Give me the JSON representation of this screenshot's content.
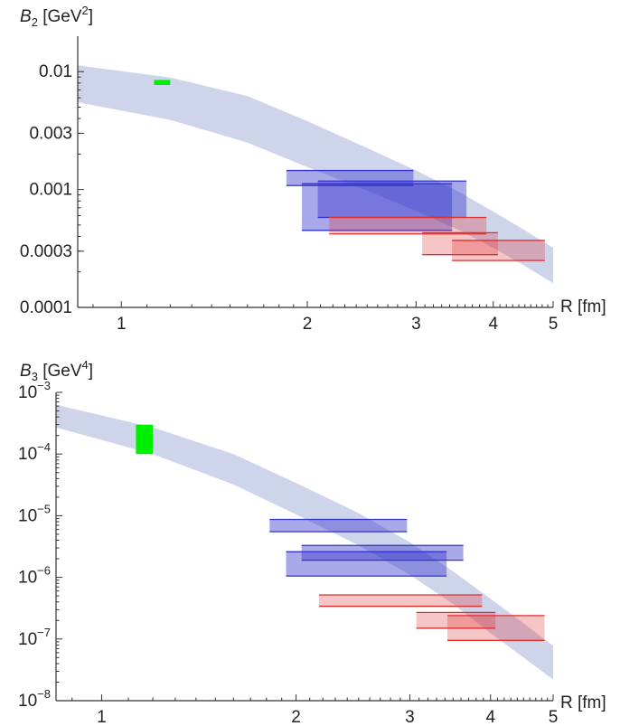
{
  "chart_data": [
    {
      "type": "area",
      "ylabel_symbol": "B",
      "ylabel_subscript": "2",
      "ylabel_unit_pre": " [GeV",
      "ylabel_unit_sup": "2",
      "ylabel_unit_post": "]",
      "xlabel": "R [fm]",
      "xscale": "log",
      "yscale": "log",
      "xlim": [
        0.85,
        5.0
      ],
      "ylim": [
        0.0001,
        0.02
      ],
      "xticks": [
        {
          "value": 1,
          "label": "1"
        },
        {
          "value": 2,
          "label": "2"
        },
        {
          "value": 3,
          "label": "3"
        },
        {
          "value": 4,
          "label": "4"
        },
        {
          "value": 5,
          "label": "5"
        }
      ],
      "yticks": [
        {
          "value": 0.01,
          "label": "0.01"
        },
        {
          "value": 0.003,
          "label": "0.003"
        },
        {
          "value": 0.001,
          "label": "0.001"
        },
        {
          "value": 0.0003,
          "label": "0.0003"
        },
        {
          "value": 0.0001,
          "label": "0.0001"
        }
      ],
      "band": {
        "color": "#c5cde6",
        "x": [
          0.85,
          1.2,
          1.6,
          2.0,
          2.5,
          3.0,
          3.5,
          4.0,
          4.5,
          5.0
        ],
        "lower": [
          0.0055,
          0.0039,
          0.0025,
          0.00155,
          0.00098,
          0.00066,
          0.00046,
          0.00032,
          0.000225,
          0.00016
        ],
        "upper": [
          0.0113,
          0.0089,
          0.0062,
          0.0038,
          0.00225,
          0.00145,
          0.00097,
          0.00065,
          0.00045,
          0.00032
        ]
      },
      "boxes": [
        {
          "color": "#00ee00",
          "fill_opacity": 1.0,
          "x": [
            1.13,
            1.2
          ],
          "y": [
            0.0077,
            0.0085
          ]
        },
        {
          "color": "#3333cc",
          "fill_opacity": 0.42,
          "x": [
            1.85,
            2.97
          ],
          "y": [
            0.00108,
            0.00145
          ]
        },
        {
          "color": "#3333cc",
          "fill_opacity": 0.42,
          "x": [
            1.96,
            3.43
          ],
          "y": [
            0.00045,
            0.00112
          ]
        },
        {
          "color": "#3333cc",
          "fill_opacity": 0.42,
          "x": [
            2.08,
            3.62
          ],
          "y": [
            0.00058,
            0.00118
          ]
        },
        {
          "color": "#e03030",
          "fill_opacity": 0.28,
          "x": [
            2.17,
            3.9
          ],
          "y": [
            0.00042,
            0.00058
          ]
        },
        {
          "color": "#e03030",
          "fill_opacity": 0.28,
          "x": [
            3.07,
            4.07
          ],
          "y": [
            0.00028,
            0.00043
          ]
        },
        {
          "color": "#e03030",
          "fill_opacity": 0.28,
          "x": [
            3.43,
            4.85
          ],
          "y": [
            0.00025,
            0.00037
          ]
        }
      ]
    },
    {
      "type": "area",
      "ylabel_symbol": "B",
      "ylabel_subscript": "3",
      "ylabel_unit_pre": " [GeV",
      "ylabel_unit_sup": "4",
      "ylabel_unit_post": "]",
      "xlabel": "R [fm]",
      "xscale": "log",
      "yscale": "log",
      "xlim": [
        0.85,
        5.0
      ],
      "ylim": [
        1e-08,
        0.001
      ],
      "xticks": [
        {
          "value": 1,
          "label": "1"
        },
        {
          "value": 2,
          "label": "2"
        },
        {
          "value": 3,
          "label": "3"
        },
        {
          "value": 4,
          "label": "4"
        },
        {
          "value": 5,
          "label": "5"
        }
      ],
      "yticks": [
        {
          "value": 0.001,
          "base": "10",
          "exp": "−3"
        },
        {
          "value": 0.0001,
          "base": "10",
          "exp": "−4"
        },
        {
          "value": 1e-05,
          "base": "10",
          "exp": "−5"
        },
        {
          "value": 1e-06,
          "base": "10",
          "exp": "−6"
        },
        {
          "value": 1e-07,
          "base": "10",
          "exp": "−7"
        },
        {
          "value": 1e-08,
          "base": "10",
          "exp": "−8"
        }
      ],
      "band": {
        "color": "#c5cde6",
        "x": [
          0.85,
          1.2,
          1.6,
          2.0,
          2.5,
          3.0,
          3.5,
          4.0,
          4.5,
          5.0
        ],
        "lower": [
          0.00027,
          0.0001,
          3.2e-05,
          1.05e-05,
          3.3e-06,
          1.1e-06,
          3.7e-07,
          1.25e-07,
          5e-08,
          2.2e-08
        ],
        "upper": [
          0.00063,
          0.00027,
          0.0001,
          3.4e-05,
          1.1e-05,
          3.7e-06,
          1.25e-06,
          4.5e-07,
          1.8e-07,
          7.8e-08
        ]
      },
      "boxes": [
        {
          "color": "#00ee00",
          "fill_opacity": 1.0,
          "x": [
            1.13,
            1.2
          ],
          "y": [
            0.0001,
            0.0003
          ]
        },
        {
          "color": "#3333cc",
          "fill_opacity": 0.42,
          "x": [
            1.82,
            2.97
          ],
          "y": [
            5.5e-06,
            8.7e-06
          ]
        },
        {
          "color": "#3333cc",
          "fill_opacity": 0.42,
          "x": [
            1.93,
            3.42
          ],
          "y": [
            1.05e-06,
            2.6e-06
          ]
        },
        {
          "color": "#3333cc",
          "fill_opacity": 0.42,
          "x": [
            2.04,
            3.63
          ],
          "y": [
            1.9e-06,
            3.3e-06
          ]
        },
        {
          "color": "#e03030",
          "fill_opacity": 0.28,
          "x": [
            2.17,
            3.88
          ],
          "y": [
            3.4e-07,
            5.2e-07
          ]
        },
        {
          "color": "#e03030",
          "fill_opacity": 0.28,
          "x": [
            3.07,
            4.07
          ],
          "y": [
            1.5e-07,
            2.7e-07
          ]
        },
        {
          "color": "#e03030",
          "fill_opacity": 0.28,
          "x": [
            3.43,
            4.85
          ],
          "y": [
            9.5e-08,
            2.4e-07
          ]
        }
      ]
    }
  ]
}
